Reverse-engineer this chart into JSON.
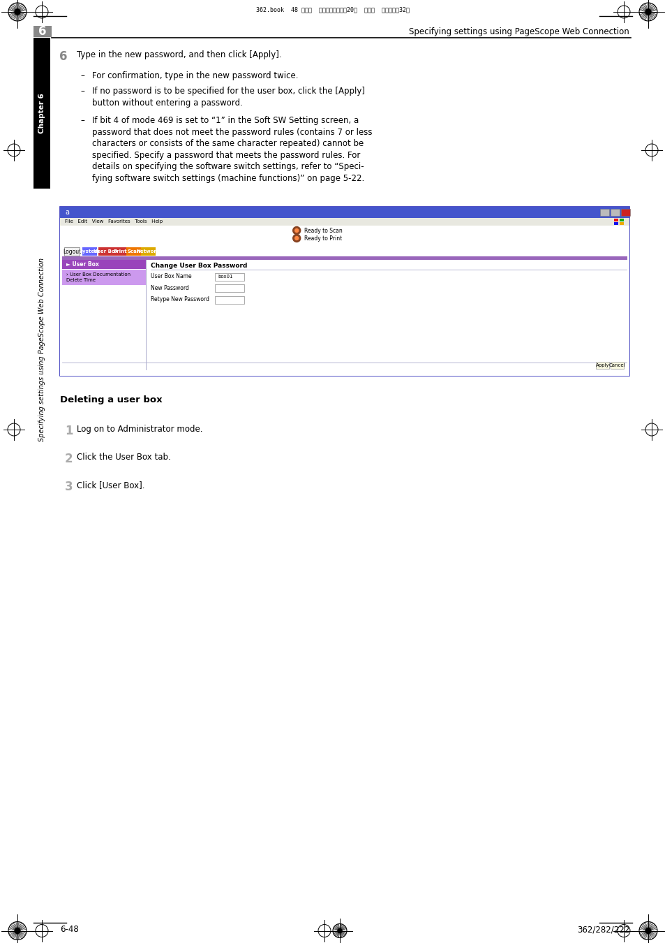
{
  "page_width": 9.54,
  "page_height": 13.5,
  "bg_color": "#ffffff",
  "header_text": "Specifying settings using PageScope Web Connection",
  "chapter_num": "6",
  "chapter_label": "Chapter 6",
  "sidebar_label": "Specifying settings using PageScope Web Connection",
  "step6_num": "6",
  "step6_text": "Type in the new password, and then click [Apply].",
  "bullet1": "For confirmation, type in the new password twice.",
  "bullet2": "If no password is to be specified for the user box, click the [Apply]\nbutton without entering a password.",
  "bullet3": "If bit 4 of mode 469 is set to “1” in the Soft SW Setting screen, a\npassword that does not meet the password rules (contains 7 or less\ncharacters or consists of the same character repeated) cannot be\nspecified. Specify a password that meets the password rules. For\ndetails on specifying the software switch settings, refer to “Speci-\nfying software switch settings (machine functions)” on page 5-22.",
  "section_title": "Deleting a user box",
  "step1_num": "1",
  "step1_text": "Log on to Administrator mode.",
  "step2_num": "2",
  "step2_text": "Click the User Box tab.",
  "step3_num": "3",
  "step3_text": "Click [User Box].",
  "footer_left": "6-48",
  "footer_right": "362/282/222",
  "top_bar_text": "362.book  48 ページ  ２００８年１０月20日  月曜日  午前１１時32分",
  "tab_system_color": "#6666ff",
  "tab_userbox_color": "#cc3333",
  "tab_print_color": "#cc3333",
  "tab_scan_color": "#ee7700",
  "tab_network_color": "#ddaa00",
  "sidebar_purple": "#aa55cc",
  "sidebar_light": "#cc99ee",
  "userbox_selected": "#9944bb",
  "purple_bar": "#9966bb"
}
